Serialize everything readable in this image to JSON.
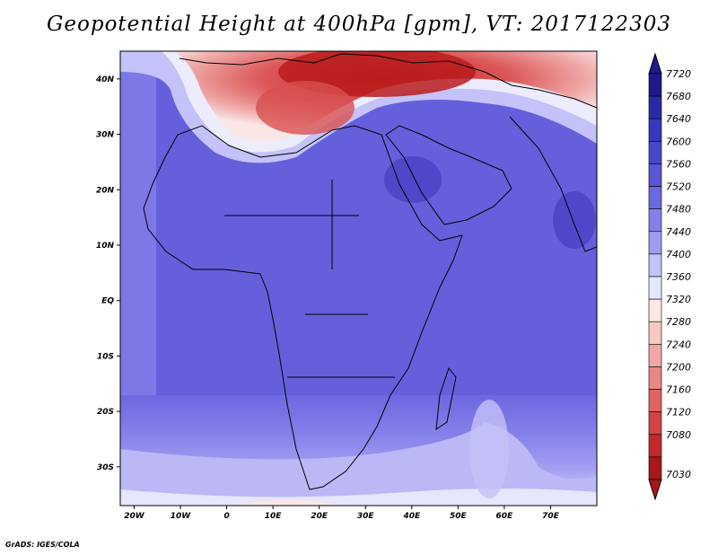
{
  "title": "Geopotential Height at 400hPa [gpm], VT: 2017122303",
  "credit": "GrADS: IGES/COLA",
  "map": {
    "lon_range": [
      -23,
      80
    ],
    "lat_range": [
      -37,
      45
    ],
    "lon_ticks": [
      {
        "value": -20,
        "label": "20W"
      },
      {
        "value": -10,
        "label": "10W"
      },
      {
        "value": 0,
        "label": "0"
      },
      {
        "value": 10,
        "label": "10E"
      },
      {
        "value": 20,
        "label": "20E"
      },
      {
        "value": 30,
        "label": "30E"
      },
      {
        "value": 40,
        "label": "40E"
      },
      {
        "value": 50,
        "label": "50E"
      },
      {
        "value": 60,
        "label": "60E"
      },
      {
        "value": 70,
        "label": "70E"
      }
    ],
    "lat_ticks": [
      {
        "value": 40,
        "label": "40N"
      },
      {
        "value": 30,
        "label": "30N"
      },
      {
        "value": 20,
        "label": "20N"
      },
      {
        "value": 10,
        "label": "10N"
      },
      {
        "value": 0,
        "label": "EQ"
      },
      {
        "value": -10,
        "label": "10S"
      },
      {
        "value": -20,
        "label": "20S"
      },
      {
        "value": -30,
        "label": "30S"
      }
    ]
  },
  "colorbar": {
    "levels": [
      "7720",
      "7680",
      "7640",
      "7600",
      "7560",
      "7520",
      "7480",
      "7440",
      "7400",
      "7360",
      "7320",
      "7280",
      "7240",
      "7200",
      "7160",
      "7120",
      "7080",
      "7030"
    ],
    "colors": [
      "#1e1a8c",
      "#2a28a6",
      "#3a36bb",
      "#4a46c8",
      "#5a56d6",
      "#6c68e0",
      "#8480ea",
      "#a09cf2",
      "#c4c2f8",
      "#e6e6fc",
      "#fbe8e6",
      "#f7c8c4",
      "#f0a8a4",
      "#e88886",
      "#de6464",
      "#d04444",
      "#c02a2a",
      "#a81818"
    ]
  }
}
